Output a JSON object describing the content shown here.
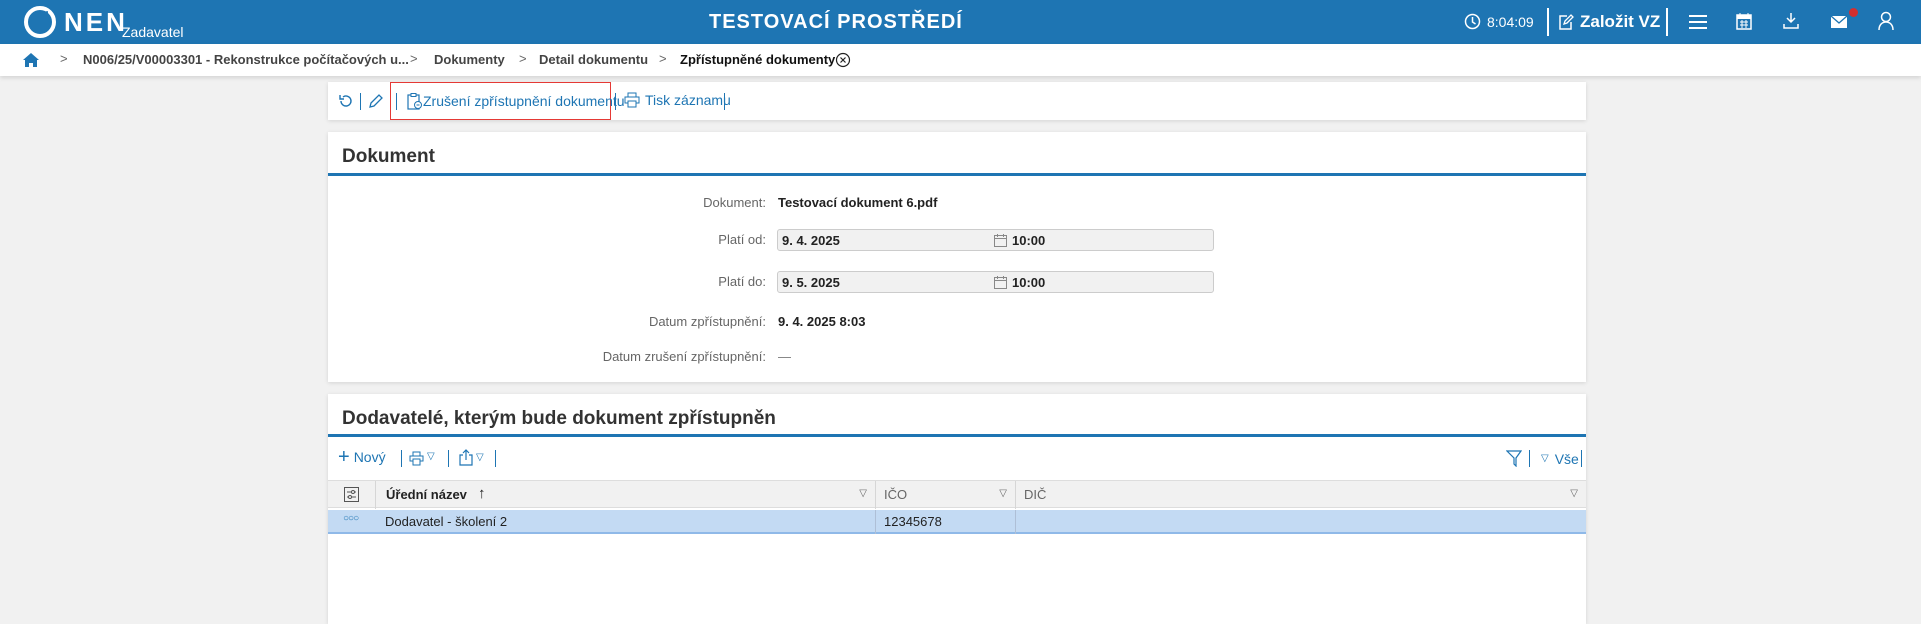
{
  "header": {
    "logo_text": "NEN",
    "role": "Zadavatel",
    "title": "TESTOVACÍ PROSTŘEDÍ",
    "time": "8:04:09",
    "create_label": "Založit VZ",
    "notification_color": "#d32f2f",
    "brand_color": "#1e75b3"
  },
  "breadcrumb": {
    "items": [
      "N006/25/V00003301 - Rekonstrukce počítačových u...",
      "Dokumenty",
      "Detail dokumentu"
    ],
    "current": "Zpřístupněné dokumenty"
  },
  "toolbar": {
    "cancel_access_label": "Zrušení zpřístupnění dokumentu",
    "print_label": "Tisk záznamu"
  },
  "document": {
    "title": "Dokument",
    "fields": {
      "document_label": "Dokument:",
      "document_value": "Testovací dokument 6.pdf",
      "valid_from_label": "Platí od:",
      "valid_from_date": "9. 4. 2025",
      "valid_from_time": "10:00",
      "valid_to_label": "Platí do:",
      "valid_to_date": "9. 5. 2025",
      "valid_to_time": "10:00",
      "access_date_label": "Datum zpřístupnění:",
      "access_date_value": "9. 4. 2025 8:03",
      "cancel_date_label": "Datum zrušení zpřístupnění:",
      "cancel_date_value": "—"
    }
  },
  "suppliers": {
    "title": "Dodavatelé, kterým bude dokument zpřístupněn",
    "new_label": "Nový",
    "filter_all_label": "Vše",
    "columns": [
      "Úřední název",
      "IČO",
      "DIČ"
    ],
    "sort_indicator": "↑",
    "rows": [
      {
        "name": "Dodavatel - školení 2",
        "ico": "12345678",
        "dic": ""
      }
    ]
  }
}
